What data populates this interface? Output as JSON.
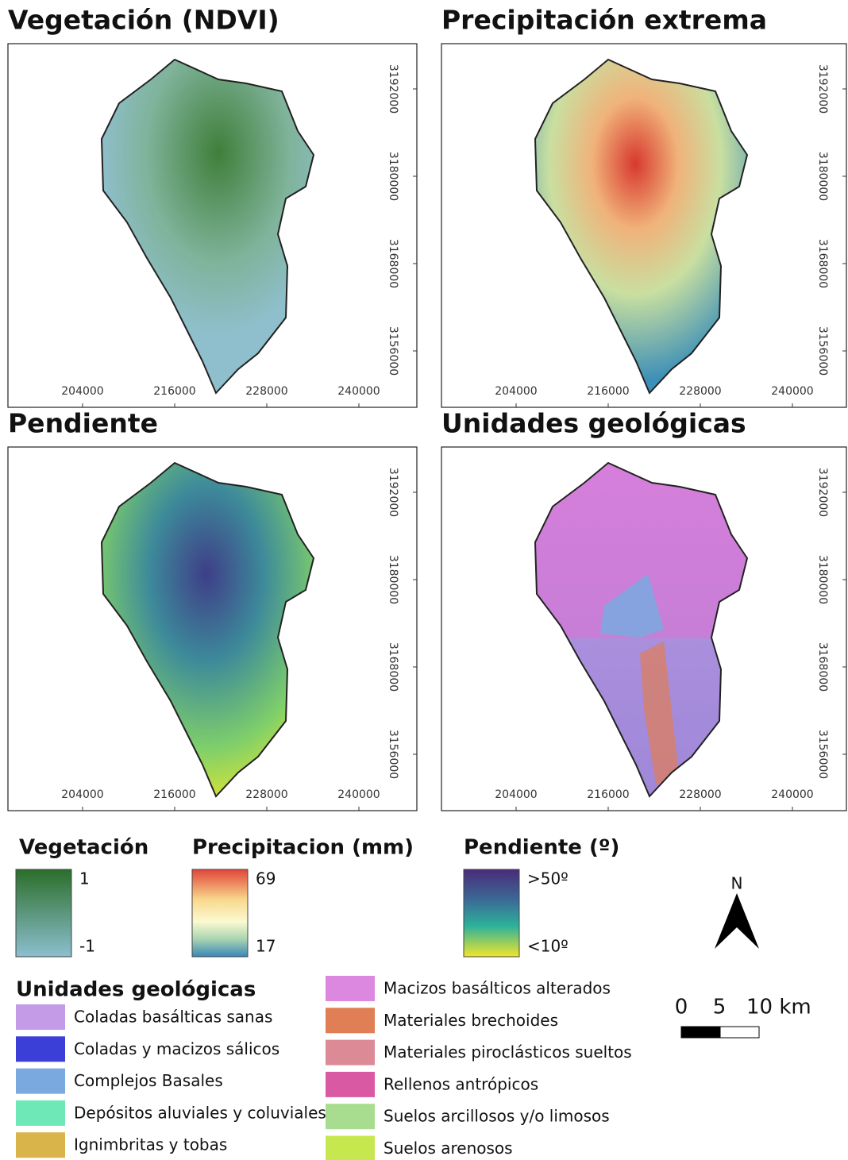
{
  "panels": [
    {
      "title": "Vegetación (NDVI)"
    },
    {
      "title": "Precipitación extrema"
    },
    {
      "title": "Pendiente"
    },
    {
      "title": "Unidades geológicas"
    }
  ],
  "x_ticks": [
    204000,
    216000,
    228000,
    240000
  ],
  "y_ticks": [
    3192000,
    3180000,
    3168000,
    3156000
  ],
  "legends": {
    "vegetation": {
      "title": "Vegetación",
      "max": 1,
      "min": -1
    },
    "precipitation": {
      "title": "Precipitacion (mm)",
      "max": 69,
      "min": 17
    },
    "slope": {
      "title": "Pendiente (º)",
      "max": ">50º",
      "min": "<10º"
    },
    "geology": {
      "title": "Unidades geológicas",
      "items": [
        {
          "name": "Coladas basálticas sanas",
          "color": "#c39be6"
        },
        {
          "name": "Coladas y macizos sálicos",
          "color": "#3b3fd8"
        },
        {
          "name": "Complejos Basales",
          "color": "#7aa9e0"
        },
        {
          "name": "Depósitos aluviales y coluviales",
          "color": "#6fe8b8"
        },
        {
          "name": "Ignimbritas y tobas",
          "color": "#d9b44a"
        },
        {
          "name": "Macizos basálticos alterados",
          "color": "#dd88e0"
        },
        {
          "name": "Materiales brechoides",
          "color": "#e07e55"
        },
        {
          "name": "Materiales piroclásticos sueltos",
          "color": "#dc8a96"
        },
        {
          "name": "Rellenos antrópicos",
          "color": "#d95aa2"
        },
        {
          "name": "Suelos arcillosos y/o limosos",
          "color": "#a8dc8e"
        },
        {
          "name": "Suelos arenosos",
          "color": "#c6e84e"
        }
      ]
    }
  },
  "scale_bar": {
    "labels": [
      "0",
      "5",
      "10 km"
    ]
  },
  "north": "N"
}
